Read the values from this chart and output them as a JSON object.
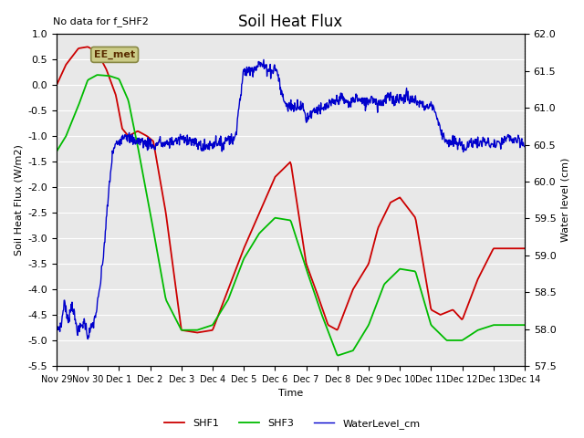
{
  "title": "Soil Heat Flux",
  "title_fontsize": 12,
  "note": "No data for f_SHF2",
  "xlabel": "Time",
  "ylabel_left": "Soil Heat Flux (W/m2)",
  "ylabel_right": "Water level (cm)",
  "ylim_left": [
    -5.5,
    1.0
  ],
  "ylim_right": [
    57.5,
    62.0
  ],
  "yticks_left": [
    1.0,
    0.5,
    0.0,
    -0.5,
    -1.0,
    -1.5,
    -2.0,
    -2.5,
    -3.0,
    -3.5,
    -4.0,
    -4.5,
    -5.0,
    -5.5
  ],
  "yticks_right": [
    62.0,
    61.5,
    61.0,
    60.5,
    60.0,
    59.5,
    59.0,
    58.5,
    58.0,
    57.5
  ],
  "xtick_labels": [
    "Nov 29",
    "Nov 30",
    "Dec 1",
    "Dec 2",
    "Dec 3",
    "Dec 4",
    "Dec 5",
    "Dec 6",
    "Dec 7",
    "Dec 8",
    "Dec 9",
    "Dec 10",
    "Dec 11",
    "Dec 12",
    "Dec 13",
    "Dec 14"
  ],
  "color_shf1": "#cc0000",
  "color_shf3": "#00bb00",
  "color_water": "#0000cc",
  "bg_color": "#e8e8e8",
  "legend_label_shf1": "SHF1",
  "legend_label_shf3": "SHF3",
  "legend_label_water": "WaterLevel_cm",
  "ee_met_label": "EE_met",
  "ee_met_bg": "#cccc88",
  "ee_met_edge": "#888844"
}
